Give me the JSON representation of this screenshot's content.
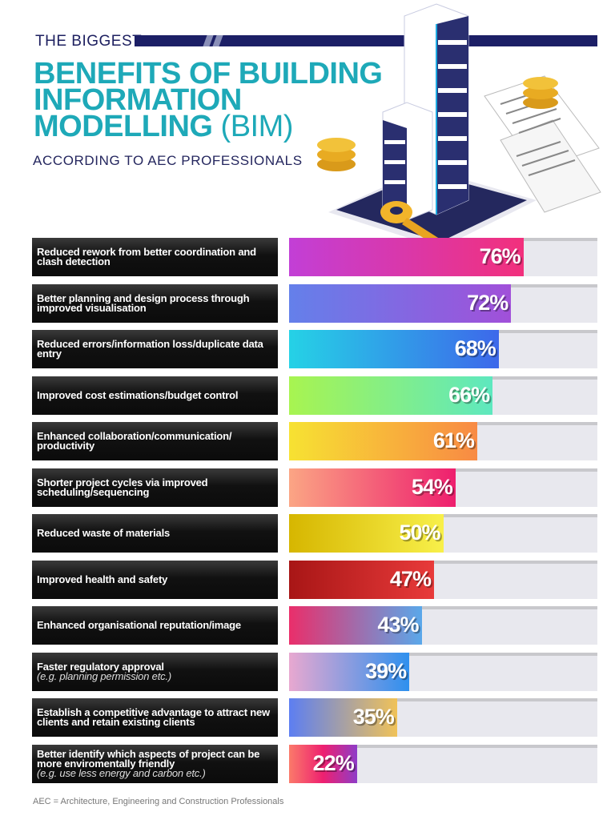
{
  "header": {
    "kicker": "THE BIGGEST",
    "title_line1": "BENEFITS OF BUILDING",
    "title_line2": "INFORMATION",
    "title_line3_bold": "MODELLING",
    "title_line3_thin": " (BIM)",
    "subtitle": "ACCORDING TO AEC PROFESSIONALS"
  },
  "chart_data": {
    "type": "bar",
    "orientation": "horizontal",
    "xlim": [
      0,
      100
    ],
    "unit": "%",
    "categories": [
      {
        "label": "Reduced rework from better coordination and clash detection",
        "note": ""
      },
      {
        "label": "Better planning and design process through improved visualisation",
        "note": ""
      },
      {
        "label": "Reduced errors/information loss/duplicate data entry",
        "note": ""
      },
      {
        "label": "Improved cost estimations/budget control",
        "note": ""
      },
      {
        "label": "Enhanced collaboration/communication/ productivity",
        "note": ""
      },
      {
        "label": "Shorter project cycles via improved scheduling/sequencing",
        "note": ""
      },
      {
        "label": "Reduced waste of materials",
        "note": ""
      },
      {
        "label": "Improved health and safety",
        "note": ""
      },
      {
        "label": "Enhanced organisational reputation/image",
        "note": ""
      },
      {
        "label": "Faster regulatory approval",
        "note": "(e.g. planning permission etc.)"
      },
      {
        "label": "Establish a competitive advantage to attract new clients and retain existing clients",
        "note": ""
      },
      {
        "label": "Better identify which aspects of project can be more enviromentally friendly",
        "note": "(e.g. use less energy and carbon etc.)"
      }
    ],
    "values": [
      76,
      72,
      68,
      66,
      61,
      54,
      50,
      47,
      43,
      39,
      35,
      22
    ],
    "value_labels": [
      "76%",
      "72%",
      "68%",
      "66%",
      "61%",
      "54%",
      "50%",
      "47%",
      "43%",
      "39%",
      "35%",
      "22%"
    ],
    "bar_gradients": [
      [
        "#c23fd6",
        "#f2307c"
      ],
      [
        "#6480ea",
        "#a150d9"
      ],
      [
        "#25d2e6",
        "#3d68ea"
      ],
      [
        "#a8f450",
        "#5ee8bf"
      ],
      [
        "#f7e232",
        "#f88a44"
      ],
      [
        "#fba584",
        "#ee1f6e"
      ],
      [
        "#d6b600",
        "#f8f04a"
      ],
      [
        "#a81616",
        "#e83a3a"
      ],
      [
        "#ea2e6a",
        "#5aa8ea"
      ],
      [
        "#e8a8d0",
        "#2e90ee"
      ],
      [
        "#5c7ef2",
        "#f0c258"
      ],
      [
        "#fb7a6a",
        "#ee2070",
        "#8e3cc8"
      ]
    ],
    "track_color": "#e8e8ee",
    "grid": false
  },
  "footer": {
    "note": "AEC = Architecture, Engineering and Construction Professionals"
  },
  "colors": {
    "title": "#1ea9b8",
    "navy": "#1c1f66",
    "label_bg": "#111111"
  }
}
